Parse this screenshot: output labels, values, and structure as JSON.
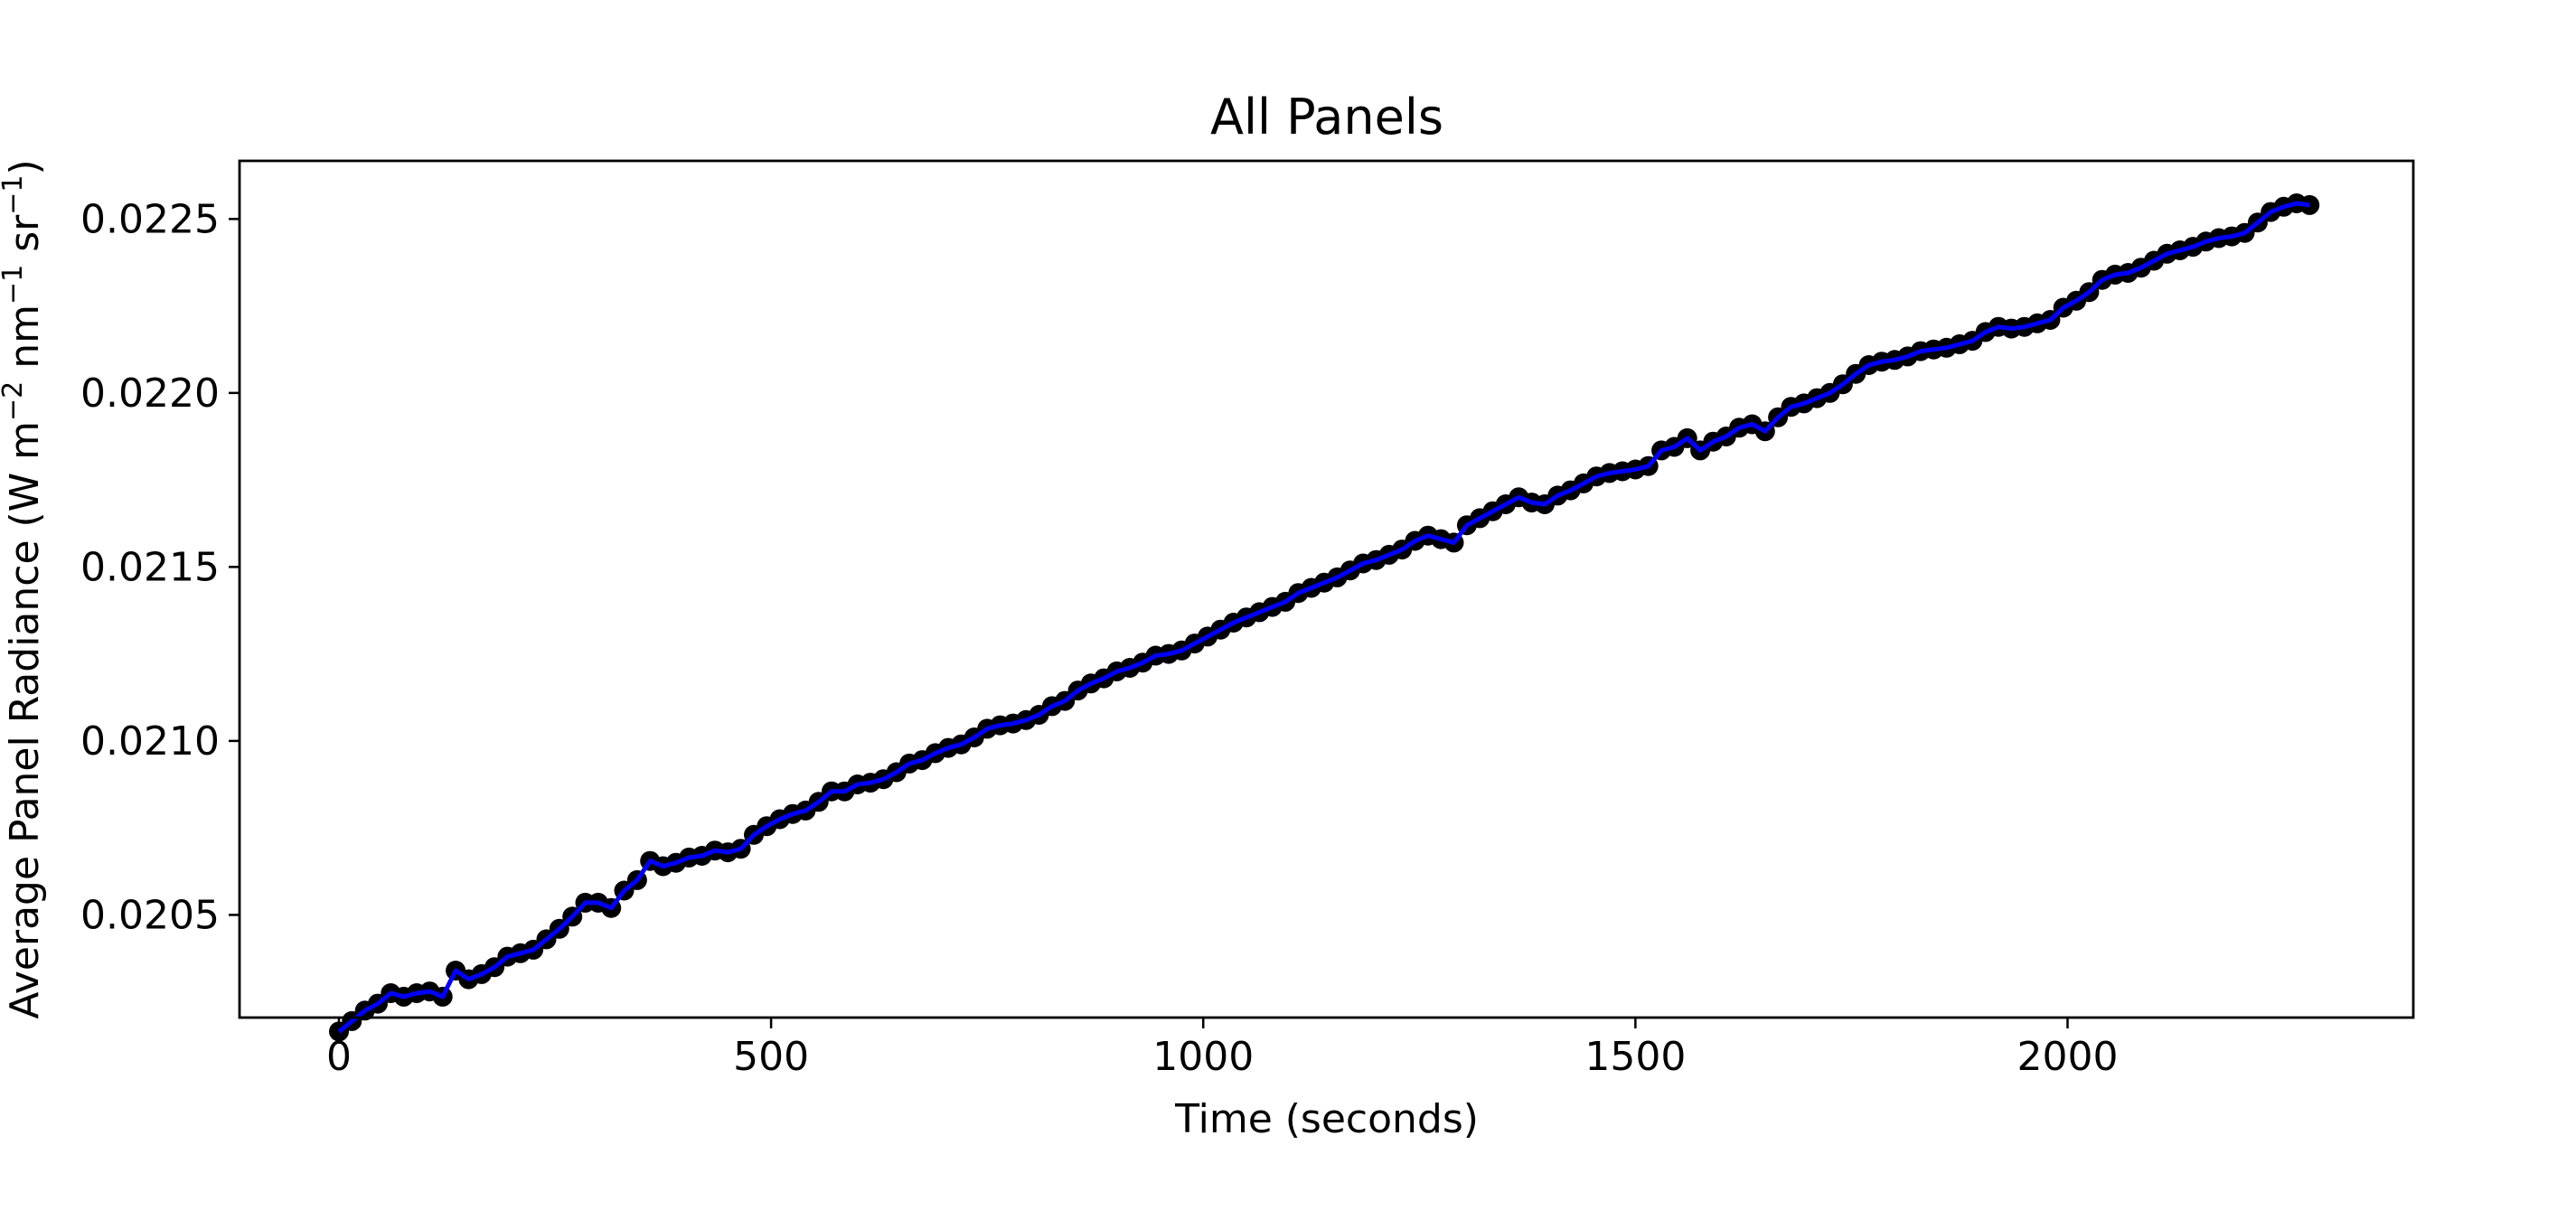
{
  "chart_data": {
    "type": "line",
    "title": "All Panels",
    "xlabel": "Time (seconds)",
    "ylabel": {
      "base": "Average Panel Radiance (W m",
      "sup1": "−2",
      "mid": " nm",
      "sup2": "−1",
      "mid2": " sr",
      "sup3": "−1",
      "end": ")"
    },
    "xlim": [
      -115,
      2400
    ],
    "ylim": [
      0.020205,
      0.022667
    ],
    "xticks": [
      0,
      500,
      1000,
      1500,
      2000
    ],
    "xtick_labels": [
      "0",
      "500",
      "1000",
      "1500",
      "2000"
    ],
    "yticks": [
      0.0205,
      0.021,
      0.0215,
      0.022,
      0.0225
    ],
    "ytick_labels": [
      "0.0205",
      "0.0210",
      "0.0215",
      "0.0220",
      "0.0225"
    ],
    "grid": false,
    "legend": false,
    "marker_color": "#000000",
    "line_color": "#0000ff",
    "series": [
      {
        "x": [
          0,
          15,
          30,
          45,
          60,
          75,
          90,
          105,
          120,
          135,
          150,
          165,
          180,
          195,
          210,
          225,
          240,
          255,
          270,
          285,
          300,
          315,
          330,
          345,
          360,
          375,
          390,
          405,
          420,
          435,
          450,
          465,
          480,
          495,
          510,
          525,
          540,
          555,
          570,
          585,
          600,
          615,
          630,
          645,
          660,
          675,
          690,
          705,
          720,
          735,
          750,
          765,
          780,
          795,
          810,
          825,
          840,
          855,
          870,
          885,
          900,
          915,
          930,
          945,
          960,
          975,
          990,
          1005,
          1020,
          1035,
          1050,
          1065,
          1080,
          1095,
          1110,
          1125,
          1140,
          1155,
          1170,
          1185,
          1200,
          1215,
          1230,
          1245,
          1260,
          1275,
          1290,
          1305,
          1320,
          1335,
          1350,
          1365,
          1380,
          1395,
          1410,
          1425,
          1440,
          1455,
          1470,
          1485,
          1500,
          1515,
          1530,
          1545,
          1560,
          1575,
          1590,
          1605,
          1620,
          1635,
          1650,
          1665,
          1680,
          1695,
          1710,
          1725,
          1740,
          1755,
          1770,
          1785,
          1800,
          1815,
          1830,
          1845,
          1860,
          1875,
          1890,
          1905,
          1920,
          1935,
          1950,
          1965,
          1980,
          1995,
          2010,
          2025,
          2040,
          2055,
          2070,
          2085,
          2100,
          2115,
          2130,
          2145,
          2160,
          2175,
          2190,
          2205,
          2220,
          2235,
          2250,
          2265,
          2280
        ],
        "y": [
          0.020165,
          0.020195,
          0.020225,
          0.020245,
          0.020275,
          0.020265,
          0.020275,
          0.02028,
          0.020265,
          0.02034,
          0.020315,
          0.02033,
          0.02035,
          0.02038,
          0.02039,
          0.0204,
          0.02043,
          0.02046,
          0.020495,
          0.020535,
          0.020535,
          0.02052,
          0.02057,
          0.0206,
          0.020655,
          0.02064,
          0.02065,
          0.020665,
          0.02067,
          0.020685,
          0.02068,
          0.02069,
          0.02073,
          0.020755,
          0.020775,
          0.02079,
          0.0208,
          0.020825,
          0.020855,
          0.020855,
          0.020875,
          0.02088,
          0.02089,
          0.02091,
          0.020935,
          0.020945,
          0.020965,
          0.02098,
          0.02099,
          0.02101,
          0.021035,
          0.021045,
          0.02105,
          0.02106,
          0.021075,
          0.0211,
          0.021115,
          0.021145,
          0.021165,
          0.02118,
          0.0212,
          0.02121,
          0.021225,
          0.021245,
          0.02125,
          0.02126,
          0.02128,
          0.0213,
          0.02132,
          0.02134,
          0.021355,
          0.02137,
          0.021385,
          0.0214,
          0.021425,
          0.02144,
          0.021455,
          0.02147,
          0.02149,
          0.02151,
          0.02152,
          0.021535,
          0.02155,
          0.021575,
          0.02159,
          0.02158,
          0.02157,
          0.02162,
          0.02164,
          0.02166,
          0.02168,
          0.0217,
          0.021685,
          0.02168,
          0.021705,
          0.02172,
          0.02174,
          0.02176,
          0.02177,
          0.021775,
          0.02178,
          0.02179,
          0.021835,
          0.021845,
          0.02187,
          0.021835,
          0.02186,
          0.021875,
          0.0219,
          0.02191,
          0.02189,
          0.02193,
          0.02196,
          0.02197,
          0.021985,
          0.022,
          0.022025,
          0.022055,
          0.02208,
          0.02209,
          0.022095,
          0.022105,
          0.02212,
          0.022125,
          0.02213,
          0.02214,
          0.02215,
          0.022175,
          0.02219,
          0.022185,
          0.02219,
          0.0222,
          0.02221,
          0.022245,
          0.022265,
          0.02229,
          0.022325,
          0.02234,
          0.022345,
          0.02236,
          0.02238,
          0.0224,
          0.02241,
          0.02242,
          0.022435,
          0.022445,
          0.02245,
          0.02246,
          0.02249,
          0.02252,
          0.022535,
          0.022545,
          0.02254
        ]
      }
    ]
  }
}
